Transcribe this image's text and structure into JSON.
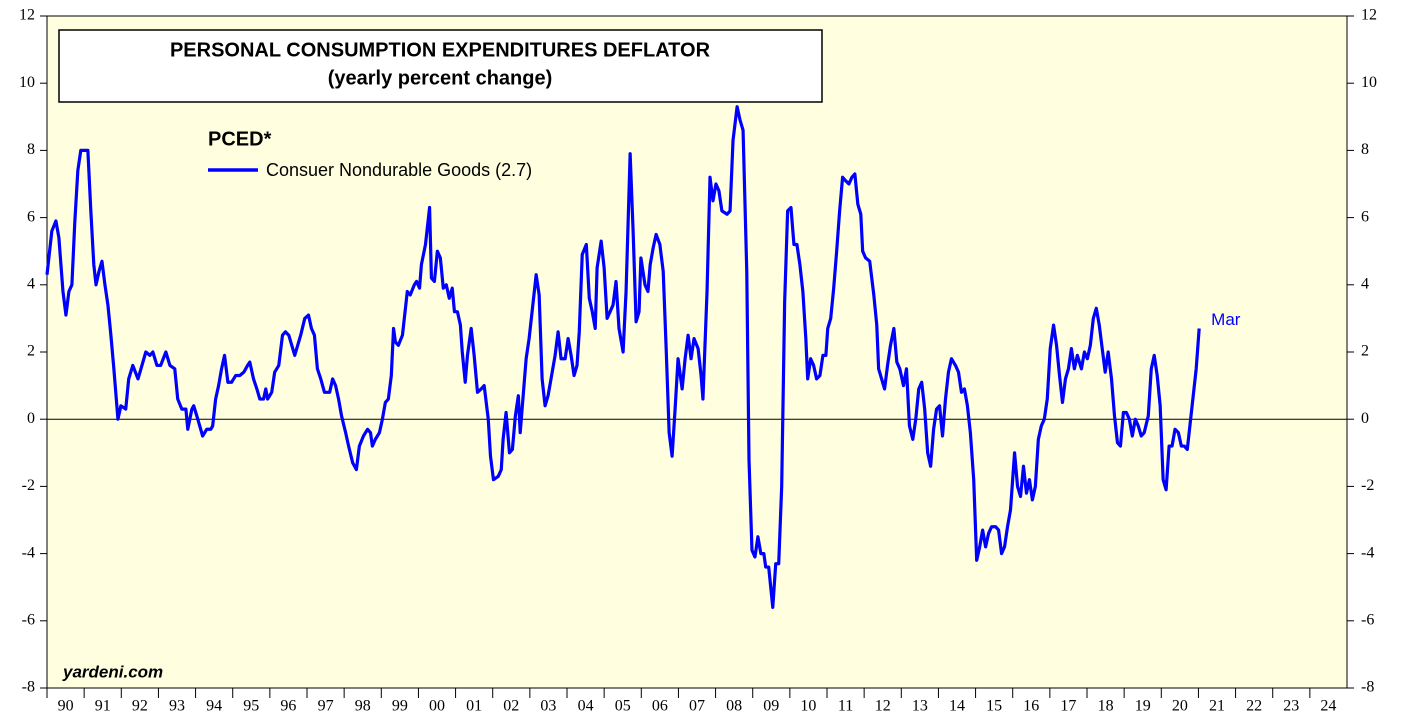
{
  "chart_data": {
    "type": "line",
    "title": "PERSONAL CONSUMPTION EXPENDITURES DEFLATOR",
    "subtitle": "(yearly percent change)",
    "legend_title": "PCED*",
    "annotation": "Mar",
    "source": "yardeni.com",
    "xlim": [
      1990,
      2025
    ],
    "ylim": [
      -8,
      12
    ],
    "yticks": [
      -8,
      -6,
      -4,
      -2,
      0,
      2,
      4,
      6,
      8,
      10,
      12
    ],
    "hline": 0,
    "xticks": [
      {
        "value": 1990,
        "label": "90"
      },
      {
        "value": 1991,
        "label": "91"
      },
      {
        "value": 1992,
        "label": "92"
      },
      {
        "value": 1993,
        "label": "93"
      },
      {
        "value": 1994,
        "label": "94"
      },
      {
        "value": 1995,
        "label": "95"
      },
      {
        "value": 1996,
        "label": "96"
      },
      {
        "value": 1997,
        "label": "97"
      },
      {
        "value": 1998,
        "label": "98"
      },
      {
        "value": 1999,
        "label": "99"
      },
      {
        "value": 2000,
        "label": "00"
      },
      {
        "value": 2001,
        "label": "01"
      },
      {
        "value": 2002,
        "label": "02"
      },
      {
        "value": 2003,
        "label": "03"
      },
      {
        "value": 2004,
        "label": "04"
      },
      {
        "value": 2005,
        "label": "05"
      },
      {
        "value": 2006,
        "label": "06"
      },
      {
        "value": 2007,
        "label": "07"
      },
      {
        "value": 2008,
        "label": "08"
      },
      {
        "value": 2009,
        "label": "09"
      },
      {
        "value": 2010,
        "label": "10"
      },
      {
        "value": 2011,
        "label": "11"
      },
      {
        "value": 2012,
        "label": "12"
      },
      {
        "value": 2013,
        "label": "13"
      },
      {
        "value": 2014,
        "label": "14"
      },
      {
        "value": 2015,
        "label": "15"
      },
      {
        "value": 2016,
        "label": "16"
      },
      {
        "value": 2017,
        "label": "17"
      },
      {
        "value": 2018,
        "label": "18"
      },
      {
        "value": 2019,
        "label": "19"
      },
      {
        "value": 2020,
        "label": "20"
      },
      {
        "value": 2021,
        "label": "21"
      },
      {
        "value": 2022,
        "label": "22"
      },
      {
        "value": 2023,
        "label": "23"
      },
      {
        "value": 2024,
        "label": "24"
      }
    ],
    "x": [
      1990.0,
      1990.13,
      1990.24,
      1990.32,
      1990.43,
      1990.51,
      1990.59,
      1990.67,
      1990.75,
      1990.83,
      1990.91,
      1991.1,
      1991.18,
      1991.26,
      1991.32,
      1991.4,
      1991.48,
      1991.56,
      1991.64,
      1991.72,
      1991.8,
      1991.91,
      1991.99,
      1992.12,
      1992.2,
      1992.31,
      1992.45,
      1992.53,
      1992.66,
      1992.77,
      1992.85,
      1992.96,
      1993.06,
      1993.2,
      1993.31,
      1993.44,
      1993.52,
      1993.63,
      1993.74,
      1993.79,
      1993.9,
      1993.95,
      1994.06,
      1994.19,
      1994.3,
      1994.41,
      1994.46,
      1994.54,
      1994.62,
      1994.7,
      1994.78,
      1994.87,
      1994.97,
      1995.08,
      1995.19,
      1995.3,
      1995.4,
      1995.46,
      1995.56,
      1995.65,
      1995.73,
      1995.83,
      1995.89,
      1995.94,
      1996.05,
      1996.13,
      1996.24,
      1996.34,
      1996.42,
      1996.51,
      1996.59,
      1996.67,
      1996.75,
      1996.83,
      1996.94,
      1997.04,
      1997.12,
      1997.2,
      1997.28,
      1997.37,
      1997.47,
      1997.53,
      1997.61,
      1997.69,
      1997.77,
      1997.85,
      1997.93,
      1998.04,
      1998.12,
      1998.23,
      1998.33,
      1998.41,
      1998.52,
      1998.63,
      1998.71,
      1998.76,
      1998.84,
      1998.95,
      1999.03,
      1999.11,
      1999.19,
      1999.27,
      1999.33,
      1999.38,
      1999.46,
      1999.57,
      1999.7,
      1999.78,
      1999.89,
      1999.95,
      2000.03,
      2000.08,
      2000.19,
      2000.3,
      2000.35,
      2000.43,
      2000.51,
      2000.59,
      2000.67,
      2000.75,
      2000.83,
      2000.91,
      2000.97,
      2001.05,
      2001.13,
      2001.18,
      2001.26,
      2001.32,
      2001.42,
      2001.5,
      2001.59,
      2001.69,
      2001.77,
      2001.88,
      2001.94,
      2002.02,
      2002.15,
      2002.23,
      2002.28,
      2002.36,
      2002.45,
      2002.53,
      2002.61,
      2002.69,
      2002.74,
      2002.82,
      2002.9,
      2002.98,
      2003.06,
      2003.17,
      2003.25,
      2003.33,
      2003.41,
      2003.49,
      2003.57,
      2003.68,
      2003.76,
      2003.84,
      2003.95,
      2004.03,
      2004.11,
      2004.19,
      2004.27,
      2004.33,
      2004.41,
      2004.52,
      2004.6,
      2004.68,
      2004.76,
      2004.81,
      2004.92,
      2005.0,
      2005.08,
      2005.16,
      2005.24,
      2005.32,
      2005.4,
      2005.51,
      2005.59,
      2005.7,
      2005.78,
      2005.86,
      2005.94,
      2005.99,
      2006.1,
      2006.18,
      2006.24,
      2006.32,
      2006.4,
      2006.5,
      2006.59,
      2006.67,
      2006.75,
      2006.83,
      2006.91,
      2006.99,
      2007.1,
      2007.18,
      2007.26,
      2007.34,
      2007.42,
      2007.53,
      2007.61,
      2007.66,
      2007.77,
      2007.85,
      2007.93,
      2008.01,
      2008.09,
      2008.17,
      2008.31,
      2008.39,
      2008.47,
      2008.58,
      2008.66,
      2008.74,
      2008.84,
      2008.9,
      2008.98,
      2009.06,
      2009.14,
      2009.22,
      2009.3,
      2009.35,
      2009.43,
      2009.54,
      2009.62,
      2009.7,
      2009.78,
      2009.86,
      2009.94,
      2010.03,
      2010.11,
      2010.19,
      2010.27,
      2010.35,
      2010.43,
      2010.48,
      2010.56,
      2010.64,
      2010.72,
      2010.81,
      2010.89,
      2010.97,
      2011.02,
      2011.1,
      2011.18,
      2011.26,
      2011.34,
      2011.42,
      2011.5,
      2011.59,
      2011.67,
      2011.75,
      2011.83,
      2011.91,
      2011.96,
      2012.04,
      2012.15,
      2012.26,
      2012.34,
      2012.39,
      2012.47,
      2012.55,
      2012.63,
      2012.71,
      2012.8,
      2012.88,
      2012.96,
      2013.06,
      2013.14,
      2013.22,
      2013.31,
      2013.39,
      2013.47,
      2013.55,
      2013.63,
      2013.71,
      2013.79,
      2013.87,
      2013.95,
      2014.03,
      2014.11,
      2014.19,
      2014.27,
      2014.35,
      2014.46,
      2014.54,
      2014.62,
      2014.7,
      2014.78,
      2014.86,
      2014.95,
      2015.03,
      2015.11,
      2015.19,
      2015.27,
      2015.35,
      2015.43,
      2015.54,
      2015.62,
      2015.7,
      2015.78,
      2015.86,
      2015.94,
      2016.05,
      2016.13,
      2016.21,
      2016.29,
      2016.37,
      2016.45,
      2016.53,
      2016.61,
      2016.69,
      2016.77,
      2016.85,
      2016.93,
      2017.01,
      2017.1,
      2017.18,
      2017.26,
      2017.34,
      2017.42,
      2017.5,
      2017.58,
      2017.66,
      2017.74,
      2017.85,
      2017.93,
      2018.01,
      2018.09,
      2018.17,
      2018.25,
      2018.33,
      2018.41,
      2018.49,
      2018.57,
      2018.66,
      2018.74,
      2018.82,
      2018.9,
      2018.98,
      2019.06,
      2019.14,
      2019.22,
      2019.3,
      2019.38,
      2019.46,
      2019.54,
      2019.65,
      2019.73,
      2019.81,
      2019.89,
      2019.97,
      2020.05,
      2020.13,
      2020.21,
      2020.29,
      2020.37,
      2020.46,
      2020.54,
      2020.62,
      2020.7,
      2020.78,
      2020.86,
      2020.94,
      2021.02
    ],
    "series": [
      {
        "name": "Consuer Nondurable Goods (2.7)",
        "color": "#0000ff",
        "values": [
          4.3,
          5.6,
          5.9,
          5.4,
          3.8,
          3.1,
          3.8,
          4.0,
          5.9,
          7.4,
          8.0,
          8.0,
          6.2,
          4.6,
          4.0,
          4.4,
          4.7,
          4.0,
          3.4,
          2.5,
          1.5,
          0.0,
          0.4,
          0.3,
          1.2,
          1.6,
          1.2,
          1.5,
          2.0,
          1.9,
          2.0,
          1.6,
          1.6,
          2.0,
          1.6,
          1.5,
          0.6,
          0.3,
          0.3,
          -0.3,
          0.3,
          0.4,
          0.0,
          -0.5,
          -0.3,
          -0.3,
          -0.2,
          0.6,
          1.0,
          1.5,
          1.9,
          1.1,
          1.1,
          1.3,
          1.3,
          1.4,
          1.6,
          1.7,
          1.2,
          0.9,
          0.6,
          0.6,
          0.9,
          0.6,
          0.8,
          1.4,
          1.6,
          2.5,
          2.6,
          2.5,
          2.2,
          1.9,
          2.2,
          2.5,
          3.0,
          3.1,
          2.7,
          2.5,
          1.5,
          1.2,
          0.8,
          0.8,
          0.8,
          1.2,
          1.0,
          0.6,
          0.1,
          -0.4,
          -0.8,
          -1.3,
          -1.5,
          -0.8,
          -0.5,
          -0.3,
          -0.4,
          -0.8,
          -0.6,
          -0.4,
          0.0,
          0.5,
          0.6,
          1.3,
          2.7,
          2.3,
          2.2,
          2.5,
          3.8,
          3.7,
          4.0,
          4.1,
          3.9,
          4.6,
          5.2,
          6.3,
          4.2,
          4.1,
          5.0,
          4.8,
          3.9,
          4.0,
          3.6,
          3.9,
          3.2,
          3.2,
          2.8,
          2.0,
          1.1,
          1.9,
          2.7,
          1.9,
          0.8,
          0.9,
          1.0,
          0.0,
          -1.1,
          -1.8,
          -1.7,
          -1.5,
          -0.6,
          0.2,
          -1.0,
          -0.9,
          0.1,
          0.7,
          -0.4,
          0.7,
          1.8,
          2.4,
          3.2,
          4.3,
          3.7,
          1.2,
          0.4,
          0.7,
          1.2,
          1.9,
          2.6,
          1.8,
          1.8,
          2.4,
          1.9,
          1.3,
          1.6,
          2.6,
          4.9,
          5.2,
          3.6,
          3.2,
          2.7,
          4.5,
          5.3,
          4.5,
          3.0,
          3.2,
          3.4,
          4.1,
          2.7,
          2.0,
          3.8,
          7.9,
          5.6,
          2.9,
          3.2,
          4.8,
          4.0,
          3.8,
          4.6,
          5.1,
          5.5,
          5.2,
          4.4,
          2.1,
          -0.4,
          -1.1,
          0.3,
          1.8,
          0.9,
          1.8,
          2.5,
          1.8,
          2.4,
          2.1,
          1.3,
          0.6,
          3.8,
          7.2,
          6.5,
          7.0,
          6.8,
          6.2,
          6.1,
          6.2,
          8.3,
          9.3,
          8.9,
          8.6,
          4.4,
          -1.2,
          -3.9,
          -4.1,
          -3.5,
          -4.0,
          -4.0,
          -4.4,
          -4.4,
          -5.6,
          -4.3,
          -4.3,
          -2.0,
          3.5,
          6.2,
          6.3,
          5.2,
          5.2,
          4.6,
          3.8,
          2.4,
          1.2,
          1.8,
          1.6,
          1.2,
          1.3,
          1.9,
          1.9,
          2.7,
          3.0,
          3.9,
          5.0,
          6.2,
          7.2,
          7.1,
          7.0,
          7.2,
          7.3,
          6.4,
          6.1,
          5.0,
          4.8,
          4.7,
          3.7,
          2.8,
          1.5,
          1.2,
          0.9,
          1.6,
          2.2,
          2.7,
          1.7,
          1.5,
          1.0,
          1.5,
          -0.2,
          -0.6,
          0.0,
          0.9,
          1.1,
          0.3,
          -1.0,
          -1.4,
          -0.3,
          0.3,
          0.4,
          -0.5,
          0.6,
          1.4,
          1.8,
          1.6,
          1.4,
          0.8,
          0.9,
          0.4,
          -0.4,
          -1.8,
          -4.2,
          -3.8,
          -3.3,
          -3.8,
          -3.4,
          -3.2,
          -3.2,
          -3.3,
          -4.0,
          -3.8,
          -3.2,
          -2.7,
          -1.0,
          -2.0,
          -2.3,
          -1.4,
          -2.2,
          -1.8,
          -2.4,
          -2.0,
          -0.6,
          -0.2,
          0.0,
          0.6,
          2.1,
          2.8,
          2.2,
          1.3,
          0.5,
          1.2,
          1.5,
          2.1,
          1.5,
          1.9,
          1.5,
          2.0,
          1.8,
          2.2,
          3.0,
          3.3,
          2.8,
          2.1,
          1.4,
          2.0,
          1.2,
          0.1,
          -0.7,
          -0.8,
          0.2,
          0.2,
          0.0,
          -0.5,
          0.0,
          -0.2,
          -0.5,
          -0.4,
          0.1,
          1.5,
          1.9,
          1.3,
          0.4,
          -1.8,
          -2.1,
          -0.8,
          -0.8,
          -0.3,
          -0.4,
          -0.8,
          -0.8,
          -0.9,
          -0.1,
          0.7,
          1.5,
          2.7
        ]
      }
    ]
  }
}
